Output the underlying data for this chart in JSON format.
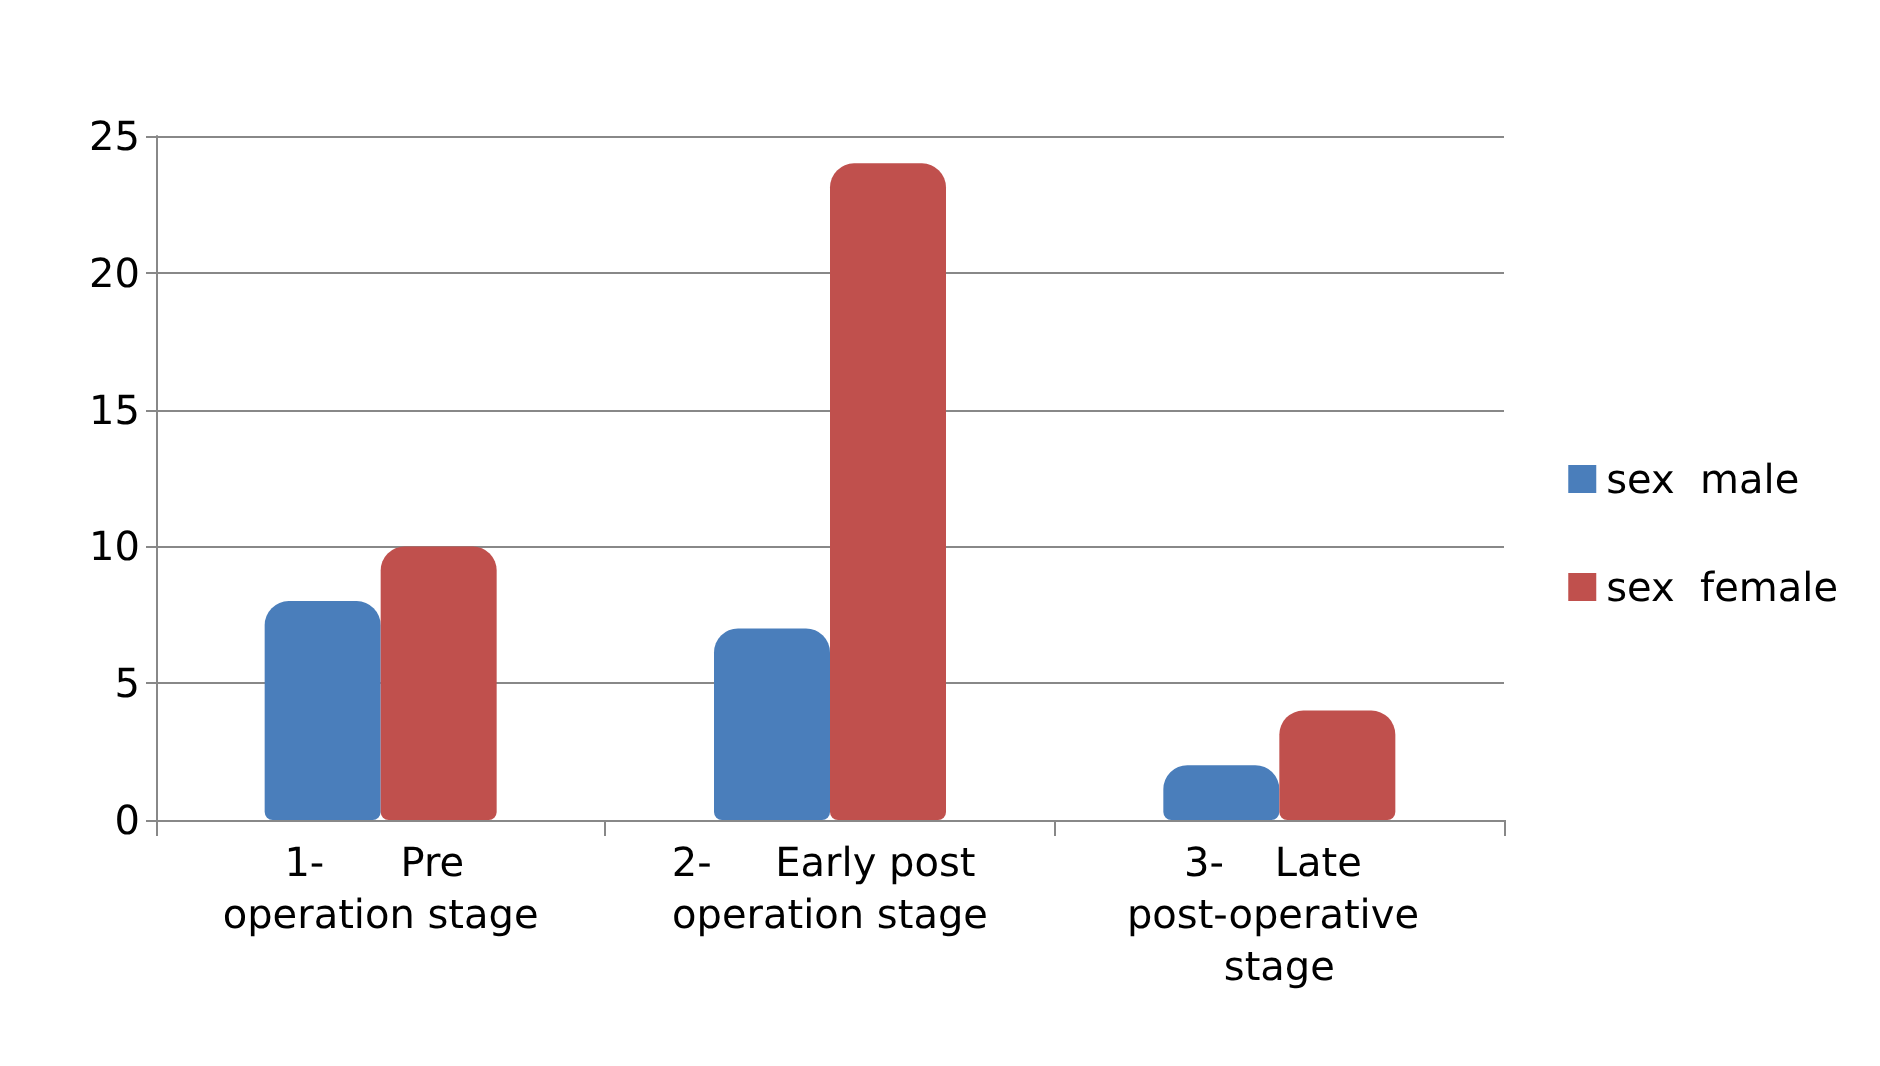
{
  "chart_data": {
    "type": "bar",
    "categories": [
      "1-      Pre operation stage",
      "2-     Early post operation stage",
      "3-    Late post-operative stage"
    ],
    "series": [
      {
        "name": "sex  male",
        "color": "#4a7ebb",
        "values": [
          8,
          7,
          2
        ]
      },
      {
        "name": "sex  female",
        "color": "#c0504d",
        "values": [
          10,
          24,
          4
        ]
      }
    ],
    "ylim": [
      0,
      25
    ],
    "yticks": [
      0,
      5,
      10,
      15,
      20,
      25
    ],
    "grid": "y",
    "legend": "right"
  }
}
